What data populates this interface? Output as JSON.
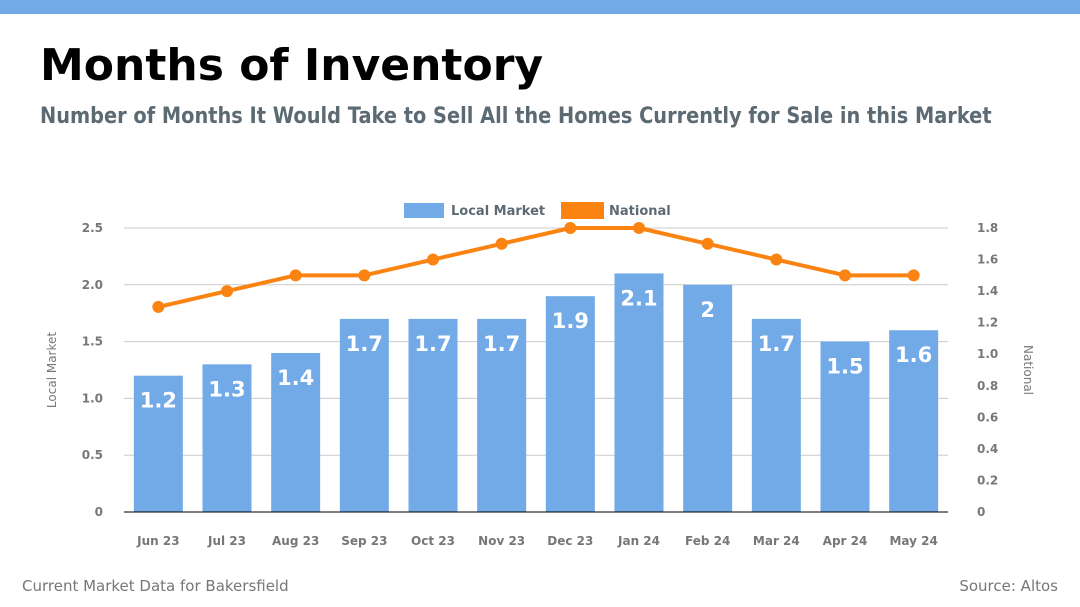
{
  "header": {
    "title": "Months of Inventory",
    "subtitle": "Number of Months It Would Take to Sell All the Homes Currently for Sale in this Market"
  },
  "footer": {
    "left": "Current Market Data for Bakersfield",
    "right": "Source: Altos"
  },
  "colors": {
    "bar": "#72aae8",
    "line": "#fb8311",
    "topbar": "#72aae8",
    "grid": "#cccccc",
    "axis_text": "#777777"
  },
  "chart_data": {
    "type": "bar",
    "categories": [
      "Jun 23",
      "Jul 23",
      "Aug 23",
      "Sep 23",
      "Oct 23",
      "Nov 23",
      "Dec 23",
      "Jan 24",
      "Feb 24",
      "Mar 24",
      "Apr 24",
      "May 24"
    ],
    "series": [
      {
        "name": "Local Market",
        "type": "bar",
        "axis": "left",
        "values": [
          1.2,
          1.3,
          1.4,
          1.7,
          1.7,
          1.7,
          1.9,
          2.1,
          2,
          1.7,
          1.5,
          1.6
        ],
        "data_labels": [
          "1.2",
          "1.3",
          "1.4",
          "1.7",
          "1.7",
          "1.7",
          "1.9",
          "2.1",
          "2",
          "1.7",
          "1.5",
          "1.6"
        ]
      },
      {
        "name": "National",
        "type": "line",
        "axis": "right",
        "values": [
          1.3,
          1.4,
          1.5,
          1.5,
          1.6,
          1.7,
          1.8,
          1.8,
          1.7,
          1.6,
          1.5,
          1.5
        ]
      }
    ],
    "ylabel": "Local Market",
    "y2label": "National",
    "ylim": [
      0,
      2.5
    ],
    "y2lim": [
      0,
      1.8
    ],
    "yticks": [
      "0",
      "0.5",
      "1.0",
      "1.5",
      "2.0",
      "2.5"
    ],
    "y2ticks": [
      "0",
      "0.2",
      "0.4",
      "0.6",
      "0.8",
      "1.0",
      "1.2",
      "1.4",
      "1.6",
      "1.8"
    ],
    "grid": true,
    "legend": "top-center"
  }
}
